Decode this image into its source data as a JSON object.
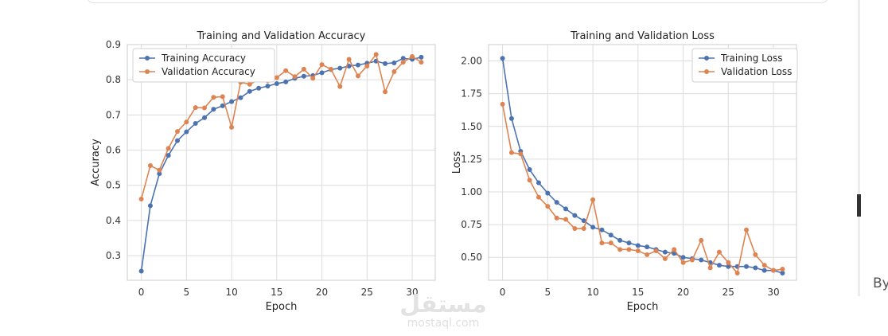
{
  "chart_data": [
    {
      "type": "line",
      "title": "Training and Validation Accuracy",
      "xlabel": "Epoch",
      "ylabel": "Accuracy",
      "xlim": [
        -1.55,
        32.55
      ],
      "ylim": [
        0.23,
        0.9
      ],
      "xticks": [
        0,
        5,
        10,
        15,
        20,
        25,
        30
      ],
      "yticks": [
        0.3,
        0.4,
        0.5,
        0.6,
        0.7,
        0.8,
        0.9
      ],
      "ytick_labels": [
        "0.3",
        "0.4",
        "0.5",
        "0.6",
        "0.7",
        "0.8",
        "0.9"
      ],
      "grid": true,
      "legend_position": "top-left",
      "x": [
        0,
        1,
        2,
        3,
        4,
        5,
        6,
        7,
        8,
        9,
        10,
        11,
        12,
        13,
        14,
        15,
        16,
        17,
        18,
        19,
        20,
        21,
        22,
        23,
        24,
        25,
        26,
        27,
        28,
        29,
        30,
        31
      ],
      "series": [
        {
          "name": "Training Accuracy",
          "color": "#4c72b0",
          "values": [
            0.256,
            0.442,
            0.533,
            0.585,
            0.627,
            0.652,
            0.676,
            0.692,
            0.716,
            0.726,
            0.738,
            0.749,
            0.767,
            0.776,
            0.782,
            0.789,
            0.794,
            0.804,
            0.81,
            0.812,
            0.82,
            0.829,
            0.833,
            0.839,
            0.842,
            0.847,
            0.853,
            0.846,
            0.848,
            0.861,
            0.858,
            0.864
          ]
        },
        {
          "name": "Validation Accuracy",
          "color": "#dd8452",
          "values": [
            0.461,
            0.556,
            0.543,
            0.605,
            0.653,
            0.68,
            0.721,
            0.72,
            0.75,
            0.752,
            0.665,
            0.793,
            0.787,
            0.8,
            0.797,
            0.806,
            0.826,
            0.809,
            0.83,
            0.804,
            0.843,
            0.83,
            0.781,
            0.858,
            0.811,
            0.839,
            0.872,
            0.766,
            0.823,
            0.85,
            0.866,
            0.85
          ]
        }
      ]
    },
    {
      "type": "line",
      "title": "Training and Validation Loss",
      "xlabel": "Epoch",
      "ylabel": "Loss",
      "xlim": [
        -1.55,
        32.55
      ],
      "ylim": [
        0.325,
        2.125
      ],
      "xticks": [
        0,
        5,
        10,
        15,
        20,
        25,
        30
      ],
      "yticks": [
        0.5,
        0.75,
        1.0,
        1.25,
        1.5,
        1.75,
        2.0
      ],
      "ytick_labels": [
        "0.50",
        "0.75",
        "1.00",
        "1.25",
        "1.50",
        "1.75",
        "2.00"
      ],
      "grid": true,
      "legend_position": "top-right",
      "x": [
        0,
        1,
        2,
        3,
        4,
        5,
        6,
        7,
        8,
        9,
        10,
        11,
        12,
        13,
        14,
        15,
        16,
        17,
        18,
        19,
        20,
        21,
        22,
        23,
        24,
        25,
        26,
        27,
        28,
        29,
        30,
        31
      ],
      "series": [
        {
          "name": "Training Loss",
          "color": "#4c72b0",
          "values": [
            2.02,
            1.56,
            1.31,
            1.17,
            1.07,
            0.99,
            0.92,
            0.87,
            0.82,
            0.78,
            0.73,
            0.71,
            0.67,
            0.63,
            0.61,
            0.59,
            0.58,
            0.56,
            0.54,
            0.53,
            0.5,
            0.49,
            0.48,
            0.46,
            0.44,
            0.43,
            0.43,
            0.43,
            0.42,
            0.4,
            0.4,
            0.38
          ]
        },
        {
          "name": "Validation Loss",
          "color": "#dd8452",
          "values": [
            1.67,
            1.3,
            1.29,
            1.09,
            0.96,
            0.89,
            0.8,
            0.79,
            0.72,
            0.72,
            0.94,
            0.61,
            0.61,
            0.56,
            0.56,
            0.55,
            0.52,
            0.55,
            0.49,
            0.56,
            0.46,
            0.48,
            0.63,
            0.42,
            0.54,
            0.46,
            0.38,
            0.71,
            0.52,
            0.44,
            0.4,
            0.41
          ]
        }
      ]
    }
  ],
  "watermark": {
    "arabic": "مستقل",
    "latin": "mostaql.com"
  },
  "edge_text": "By"
}
